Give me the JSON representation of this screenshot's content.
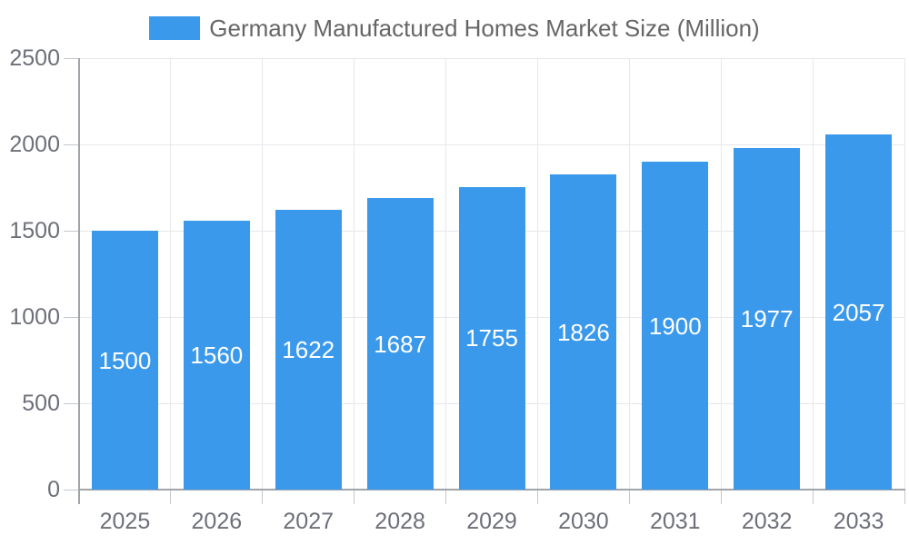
{
  "chart_data": {
    "type": "bar",
    "title": "Germany Manufactured Homes Market Size (Million)",
    "legend": {
      "label": "Germany Manufactured Homes Market Size (Million)",
      "position": "top-center"
    },
    "categories": [
      "2025",
      "2026",
      "2027",
      "2028",
      "2029",
      "2030",
      "2031",
      "2032",
      "2033"
    ],
    "series": [
      {
        "name": "Germany Manufactured Homes Market Size (Million)",
        "values": [
          1500,
          1560,
          1622,
          1687,
          1755,
          1826,
          1900,
          1977,
          2057
        ]
      }
    ],
    "bar_value_labels": [
      "1500",
      "1560",
      "1622",
      "1687",
      "1755",
      "1826",
      "1900",
      "1977",
      "2057"
    ],
    "xlabel": "",
    "ylabel": "",
    "ylim": [
      0,
      2500
    ],
    "yticks": [
      0,
      500,
      1000,
      1500,
      2000,
      2500
    ],
    "ytick_labels": [
      "0",
      "500",
      "1000",
      "1500",
      "2000",
      "2500"
    ],
    "grid": true,
    "value_labels_inside": true,
    "colors": {
      "bar": "#3B99EC",
      "bar_label": "#FFFFFF",
      "axis_line": "#A0A3A8",
      "tick": "#C4C7CC",
      "grid_line": "#E6E8EB",
      "axis_text": "#6E7079",
      "legend_text": "#666666",
      "background": "#FFFFFF"
    }
  }
}
